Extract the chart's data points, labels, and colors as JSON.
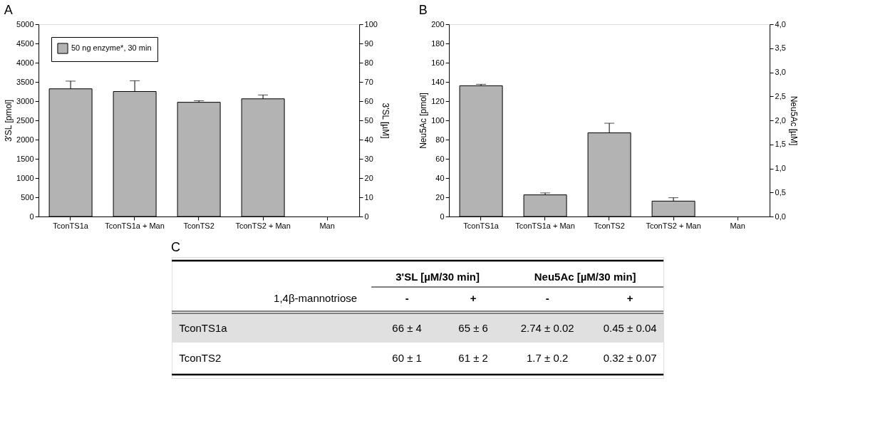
{
  "chart_data": [
    {
      "type": "bar",
      "title": "A",
      "ylabel": "3'SL [pmol]",
      "y2label": "3'SL [µM]",
      "categories": [
        "TconTS1a",
        "TconTS1a + Man",
        "TconTS2",
        "TconTS2 + Man",
        "Man"
      ],
      "series": [
        {
          "name": "50 ng enzyme*, 30 min",
          "color": "#b3b3b3",
          "values": [
            3320,
            3250,
            2970,
            3060,
            0
          ],
          "errors": [
            200,
            280,
            40,
            100,
            null
          ]
        }
      ],
      "ylim": [
        0,
        5000
      ],
      "yticks": [
        0,
        500,
        1000,
        1500,
        2000,
        2500,
        3000,
        3500,
        4000,
        4500,
        5000
      ],
      "y2lim": [
        0,
        100
      ],
      "y2ticks": [
        0,
        10,
        20,
        30,
        40,
        50,
        60,
        70,
        80,
        90,
        100
      ],
      "legend": "top left",
      "grid": false
    },
    {
      "type": "bar",
      "title": "B",
      "ylabel": "Neu5Ac [pmol]",
      "y2label": "Neu5Ac [µM]",
      "categories": [
        "TconTS1a",
        "TconTS1a + Man",
        "TconTS2",
        "TconTS2 + Man",
        "Man"
      ],
      "series": [
        {
          "name": "50 ng enzyme*, 30 min",
          "color": "#b3b3b3",
          "values": [
            136,
            22.5,
            87,
            16,
            0
          ],
          "errors": [
            1.5,
            2,
            10,
            3.5,
            null
          ]
        }
      ],
      "ylim": [
        0,
        200
      ],
      "yticks": [
        0,
        20,
        40,
        60,
        80,
        100,
        120,
        140,
        160,
        180,
        200
      ],
      "y2lim": [
        0,
        4
      ],
      "y2ticks": [
        {
          "value": 0,
          "label": "0,0"
        },
        {
          "value": 0.5,
          "label": "0,5"
        },
        {
          "value": 1,
          "label": "1,0"
        },
        {
          "value": 1.5,
          "label": "1,5"
        },
        {
          "value": 2,
          "label": "2,0"
        },
        {
          "value": 2.5,
          "label": "2,5"
        },
        {
          "value": 3,
          "label": "3,0"
        },
        {
          "value": 3.5,
          "label": "3,5"
        },
        {
          "value": 4,
          "label": "4,0"
        }
      ],
      "legend": "top left",
      "grid": false
    },
    {
      "type": "other",
      "title": "C",
      "annotations": [
        "3'SL [µM/30 min]",
        "Neu5Ac [µM/30 min]",
        "1,4β-mannotriose",
        "-",
        "+",
        "-",
        "+",
        "TconTS1a",
        "66 ± 4",
        "65 ± 6",
        "2.74 ± 0.02",
        "0.45 ± 0.04",
        "TconTS2",
        "60 ± 1",
        "61 ± 2",
        "1.7 ± 0.2",
        "0.32 ± 0.07"
      ]
    }
  ]
}
